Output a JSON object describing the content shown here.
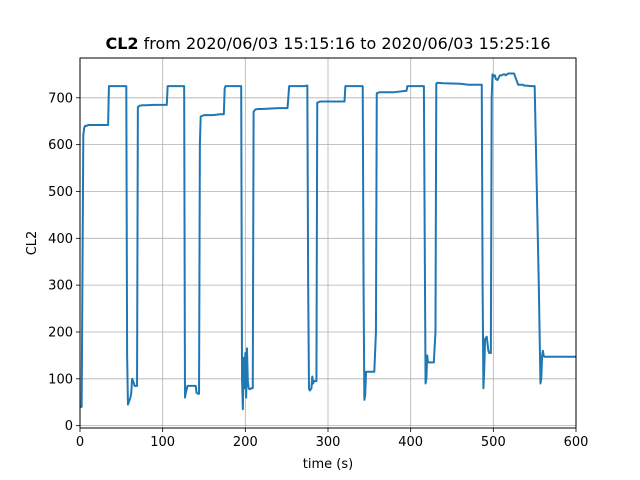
{
  "chart_data": {
    "type": "line",
    "title_bold": "CL2",
    "title_rest": " from 2020/06/03 15:15:16 to 2020/06/03 15:25:16",
    "xlabel": "time (s)",
    "ylabel": "CL2",
    "xlim": [
      0,
      600
    ],
    "ylim": [
      -5,
      785
    ],
    "xticks": [
      0,
      100,
      200,
      300,
      400,
      500,
      600
    ],
    "yticks": [
      0,
      100,
      200,
      300,
      400,
      500,
      600,
      700
    ],
    "grid": true,
    "line_color": "#1f77b4",
    "series": [
      {
        "x": [
          0,
          2,
          4,
          5,
          6,
          8,
          10,
          34,
          35,
          36,
          54,
          56,
          57,
          58,
          60,
          61,
          62,
          63,
          65,
          66,
          68,
          69,
          70,
          72,
          75,
          80,
          90,
          98,
          105,
          106,
          107,
          110,
          124,
          126,
          127,
          128,
          130,
          131,
          140,
          141,
          143,
          144,
          145,
          146,
          150,
          160,
          170,
          173,
          174,
          175,
          176,
          192,
          194,
          195,
          196,
          197,
          198,
          199,
          200,
          201,
          202,
          203,
          204,
          205,
          206,
          207,
          208,
          209,
          210,
          212,
          215,
          220,
          240,
          250,
          251,
          252,
          253,
          255,
          270,
          272,
          274,
          275,
          276,
          277,
          278,
          280,
          281,
          282,
          283,
          284,
          285,
          286,
          287,
          288,
          290,
          300,
          318,
          320,
          321,
          322,
          324,
          340,
          342,
          343,
          344,
          345,
          346,
          347,
          348,
          350,
          352,
          355,
          356,
          358,
          359,
          360,
          362,
          366,
          380,
          395,
          396,
          398,
          400,
          412,
          414,
          415,
          416,
          417,
          418,
          419,
          420,
          421,
          422,
          425,
          427,
          428,
          430,
          431,
          432,
          433,
          440,
          460,
          470,
          485,
          486,
          487,
          488,
          489,
          490,
          492,
          494,
          495,
          496,
          497,
          498,
          499,
          500,
          501,
          502,
          503,
          505,
          508,
          510,
          512,
          514,
          515,
          518,
          520,
          525,
          530,
          535,
          536,
          537,
          540,
          545,
          550,
          555,
          557,
          558,
          559,
          560,
          561,
          562,
          563,
          564,
          565,
          570,
          580,
          590,
          600
        ],
        "y": [
          40,
          40,
          620,
          635,
          640,
          640,
          642,
          642,
          725,
          725,
          725,
          725,
          150,
          45,
          55,
          60,
          70,
          100,
          92,
          85,
          85,
          85,
          680,
          683,
          684,
          684,
          685,
          685,
          685,
          725,
          725,
          725,
          725,
          725,
          60,
          70,
          85,
          85,
          85,
          70,
          68,
          68,
          600,
          660,
          663,
          663,
          665,
          665,
          665,
          720,
          725,
          725,
          725,
          725,
          100,
          35,
          145,
          80,
          155,
          60,
          165,
          95,
          80,
          78,
          78,
          80,
          80,
          80,
          670,
          675,
          676,
          676,
          678,
          678,
          678,
          700,
          725,
          725,
          725,
          725,
          726,
          726,
          300,
          80,
          75,
          80,
          105,
          90,
          95,
          95,
          95,
          95,
          690,
          690,
          692,
          692,
          692,
          692,
          725,
          725,
          725,
          725,
          725,
          300,
          55,
          65,
          115,
          115,
          115,
          115,
          115,
          115,
          115,
          200,
          710,
          710,
          712,
          712,
          712,
          715,
          725,
          725,
          725,
          725,
          725,
          725,
          725,
          400,
          90,
          100,
          150,
          135,
          135,
          135,
          135,
          135,
          200,
          730,
          732,
          732,
          731,
          730,
          728,
          728,
          728,
          300,
          80,
          120,
          185,
          190,
          160,
          155,
          155,
          155,
          700,
          750,
          745,
          748,
          748,
          740,
          738,
          748,
          748,
          750,
          750,
          748,
          752,
          752,
          752,
          728,
          728,
          728,
          726,
          726,
          725,
          725,
          300,
          90,
          100,
          150,
          160,
          148,
          147,
          147,
          147,
          147,
          147,
          147,
          147,
          147
        ]
      }
    ]
  }
}
